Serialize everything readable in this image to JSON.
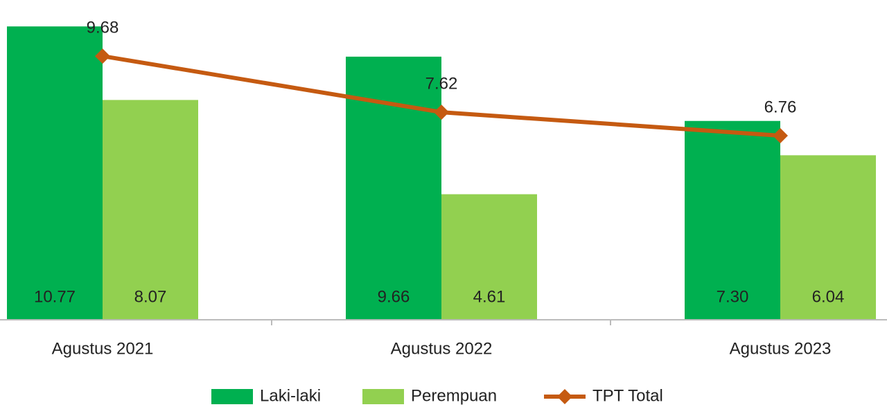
{
  "chart_data": {
    "type": "bar-line",
    "categories": [
      "Agustus 2021",
      "Agustus 2022",
      "Agustus 2023"
    ],
    "series": [
      {
        "name": "Laki-laki",
        "type": "bar",
        "color": "#00b050",
        "values": [
          10.77,
          9.66,
          7.3
        ],
        "value_labels": [
          "10.77",
          "9.66",
          "7.30"
        ]
      },
      {
        "name": "Perempuan",
        "type": "bar",
        "color": "#92d050",
        "values": [
          8.07,
          4.61,
          6.04
        ],
        "value_labels": [
          "8.07",
          "4.61",
          "6.04"
        ]
      },
      {
        "name": "TPT Total",
        "type": "line",
        "color": "#c55a11",
        "values": [
          9.68,
          7.62,
          6.76
        ],
        "value_labels": [
          "9.68",
          "7.62",
          "6.76"
        ]
      }
    ],
    "ylim": [
      0,
      10.8
    ],
    "legend": "bottom"
  }
}
